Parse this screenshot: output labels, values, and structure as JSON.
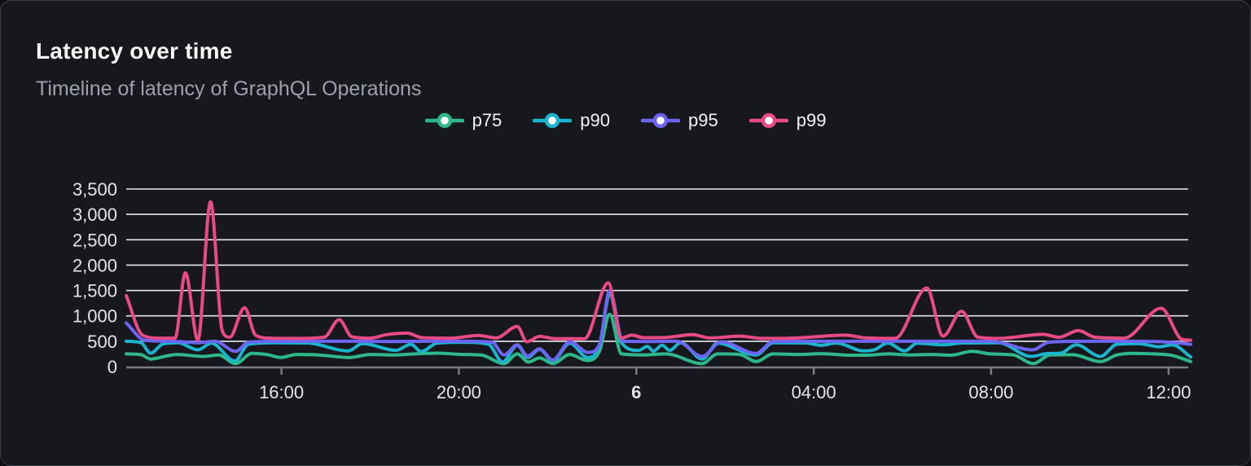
{
  "panel": {
    "title": "Latency over time",
    "subtitle": "Timeline of latency of GraphQL Operations"
  },
  "colors": {
    "panel_background": "#16181e",
    "panel_border": "#3a3e46",
    "grid_line": "#e6e7ea",
    "axis_line": "#787c84",
    "tick_label": "#e3e5e8",
    "title_text": "#f7f8f8",
    "subtitle_text": "#9da2aa"
  },
  "chart_data": {
    "type": "line",
    "title": "Latency over time",
    "subtitle": "Timeline of latency of GraphQL Operations",
    "grid": true,
    "legend_position": "top-center",
    "ylim": [
      0,
      3500
    ],
    "y_ticks": [
      {
        "v": 0,
        "label": "0"
      },
      {
        "v": 500,
        "label": "500"
      },
      {
        "v": 1000,
        "label": "1,000"
      },
      {
        "v": 1500,
        "label": "1,500"
      },
      {
        "v": 2000,
        "label": "2,000"
      },
      {
        "v": 2500,
        "label": "2,500"
      },
      {
        "v": 3000,
        "label": "3,000"
      },
      {
        "v": 3500,
        "label": "3,500"
      }
    ],
    "x_domain_minutes": [
      0,
      1440
    ],
    "x_ticks": [
      {
        "t": 210,
        "label": "16:00",
        "bold": false
      },
      {
        "t": 450,
        "label": "20:00",
        "bold": false
      },
      {
        "t": 690,
        "label": "6",
        "bold": true
      },
      {
        "t": 930,
        "label": "04:00",
        "bold": false
      },
      {
        "t": 1170,
        "label": "08:00",
        "bold": false
      },
      {
        "t": 1410,
        "label": "12:00",
        "bold": false
      }
    ],
    "series": [
      {
        "name": "p75",
        "color": "#2eb88a",
        "points": [
          [
            0,
            250
          ],
          [
            20,
            235
          ],
          [
            33,
            150
          ],
          [
            55,
            210
          ],
          [
            68,
            240
          ],
          [
            104,
            200
          ],
          [
            125,
            230
          ],
          [
            148,
            60
          ],
          [
            170,
            260
          ],
          [
            190,
            240
          ],
          [
            209,
            180
          ],
          [
            230,
            240
          ],
          [
            260,
            230
          ],
          [
            302,
            180
          ],
          [
            330,
            240
          ],
          [
            360,
            230
          ],
          [
            390,
            250
          ],
          [
            423,
            265
          ],
          [
            455,
            240
          ],
          [
            480,
            230
          ],
          [
            511,
            60
          ],
          [
            529,
            250
          ],
          [
            544,
            90
          ],
          [
            559,
            170
          ],
          [
            577,
            60
          ],
          [
            600,
            240
          ],
          [
            624,
            120
          ],
          [
            640,
            300
          ],
          [
            654,
            1030
          ],
          [
            670,
            250
          ],
          [
            700,
            230
          ],
          [
            730,
            250
          ],
          [
            779,
            60
          ],
          [
            800,
            250
          ],
          [
            830,
            240
          ],
          [
            852,
            100
          ],
          [
            875,
            250
          ],
          [
            910,
            240
          ],
          [
            940,
            255
          ],
          [
            970,
            230
          ],
          [
            1000,
            225
          ],
          [
            1030,
            250
          ],
          [
            1060,
            230
          ],
          [
            1090,
            240
          ],
          [
            1115,
            225
          ],
          [
            1144,
            300
          ],
          [
            1170,
            250
          ],
          [
            1200,
            230
          ],
          [
            1227,
            60
          ],
          [
            1250,
            230
          ],
          [
            1280,
            235
          ],
          [
            1318,
            100
          ],
          [
            1340,
            230
          ],
          [
            1364,
            260
          ],
          [
            1390,
            250
          ],
          [
            1415,
            220
          ],
          [
            1440,
            100
          ]
        ]
      },
      {
        "name": "p90",
        "color": "#1ab4cf",
        "points": [
          [
            0,
            500
          ],
          [
            20,
            470
          ],
          [
            33,
            265
          ],
          [
            50,
            450
          ],
          [
            70,
            470
          ],
          [
            97,
            330
          ],
          [
            115,
            460
          ],
          [
            147,
            110
          ],
          [
            165,
            440
          ],
          [
            200,
            470
          ],
          [
            245,
            465
          ],
          [
            300,
            310
          ],
          [
            320,
            455
          ],
          [
            365,
            320
          ],
          [
            385,
            440
          ],
          [
            399,
            295
          ],
          [
            420,
            460
          ],
          [
            455,
            480
          ],
          [
            490,
            440
          ],
          [
            509,
            90
          ],
          [
            529,
            420
          ],
          [
            543,
            180
          ],
          [
            559,
            340
          ],
          [
            577,
            110
          ],
          [
            600,
            460
          ],
          [
            624,
            180
          ],
          [
            640,
            400
          ],
          [
            654,
            1430
          ],
          [
            670,
            470
          ],
          [
            693,
            320
          ],
          [
            705,
            400
          ],
          [
            713,
            305
          ],
          [
            725,
            420
          ],
          [
            735,
            320
          ],
          [
            750,
            470
          ],
          [
            779,
            150
          ],
          [
            800,
            460
          ],
          [
            852,
            230
          ],
          [
            875,
            470
          ],
          [
            920,
            465
          ],
          [
            940,
            420
          ],
          [
            960,
            465
          ],
          [
            998,
            310
          ],
          [
            1012,
            330
          ],
          [
            1030,
            465
          ],
          [
            1053,
            310
          ],
          [
            1070,
            460
          ],
          [
            1105,
            430
          ],
          [
            1130,
            465
          ],
          [
            1180,
            470
          ],
          [
            1224,
            200
          ],
          [
            1245,
            255
          ],
          [
            1265,
            270
          ],
          [
            1285,
            430
          ],
          [
            1318,
            200
          ],
          [
            1340,
            440
          ],
          [
            1370,
            455
          ],
          [
            1397,
            390
          ],
          [
            1415,
            430
          ],
          [
            1440,
            190
          ]
        ]
      },
      {
        "name": "p95",
        "color": "#6c64f2",
        "points": [
          [
            0,
            860
          ],
          [
            25,
            520
          ],
          [
            60,
            500
          ],
          [
            97,
            470
          ],
          [
            120,
            500
          ],
          [
            148,
            300
          ],
          [
            165,
            480
          ],
          [
            210,
            500
          ],
          [
            260,
            500
          ],
          [
            310,
            500
          ],
          [
            360,
            495
          ],
          [
            410,
            500
          ],
          [
            460,
            500
          ],
          [
            495,
            480
          ],
          [
            511,
            230
          ],
          [
            529,
            430
          ],
          [
            543,
            210
          ],
          [
            559,
            350
          ],
          [
            577,
            130
          ],
          [
            600,
            490
          ],
          [
            625,
            280
          ],
          [
            640,
            430
          ],
          [
            654,
            1500
          ],
          [
            672,
            500
          ],
          [
            710,
            495
          ],
          [
            745,
            500
          ],
          [
            779,
            200
          ],
          [
            805,
            490
          ],
          [
            852,
            260
          ],
          [
            875,
            495
          ],
          [
            930,
            500
          ],
          [
            990,
            500
          ],
          [
            1050,
            500
          ],
          [
            1110,
            500
          ],
          [
            1170,
            500
          ],
          [
            1226,
            330
          ],
          [
            1248,
            480
          ],
          [
            1300,
            500
          ],
          [
            1360,
            500
          ],
          [
            1400,
            490
          ],
          [
            1425,
            465
          ],
          [
            1440,
            440
          ]
        ]
      },
      {
        "name": "p99",
        "color": "#e84a85",
        "points": [
          [
            0,
            1400
          ],
          [
            22,
            620
          ],
          [
            45,
            560
          ],
          [
            66,
            560
          ],
          [
            80,
            1850
          ],
          [
            97,
            520
          ],
          [
            114,
            3250
          ],
          [
            130,
            700
          ],
          [
            140,
            580
          ],
          [
            160,
            1160
          ],
          [
            175,
            620
          ],
          [
            195,
            560
          ],
          [
            230,
            555
          ],
          [
            268,
            580
          ],
          [
            288,
            925
          ],
          [
            305,
            590
          ],
          [
            330,
            560
          ],
          [
            352,
            630
          ],
          [
            380,
            660
          ],
          [
            400,
            570
          ],
          [
            440,
            560
          ],
          [
            476,
            615
          ],
          [
            500,
            565
          ],
          [
            529,
            790
          ],
          [
            542,
            490
          ],
          [
            559,
            595
          ],
          [
            580,
            550
          ],
          [
            620,
            550
          ],
          [
            652,
            1650
          ],
          [
            670,
            565
          ],
          [
            684,
            620
          ],
          [
            700,
            570
          ],
          [
            730,
            575
          ],
          [
            766,
            630
          ],
          [
            790,
            565
          ],
          [
            830,
            600
          ],
          [
            860,
            555
          ],
          [
            900,
            560
          ],
          [
            973,
            620
          ],
          [
            1000,
            565
          ],
          [
            1040,
            555
          ],
          [
            1083,
            1550
          ],
          [
            1105,
            600
          ],
          [
            1130,
            1090
          ],
          [
            1152,
            580
          ],
          [
            1180,
            555
          ],
          [
            1240,
            635
          ],
          [
            1262,
            580
          ],
          [
            1288,
            710
          ],
          [
            1310,
            580
          ],
          [
            1350,
            560
          ],
          [
            1400,
            1150
          ],
          [
            1428,
            540
          ],
          [
            1440,
            520
          ]
        ]
      }
    ]
  }
}
